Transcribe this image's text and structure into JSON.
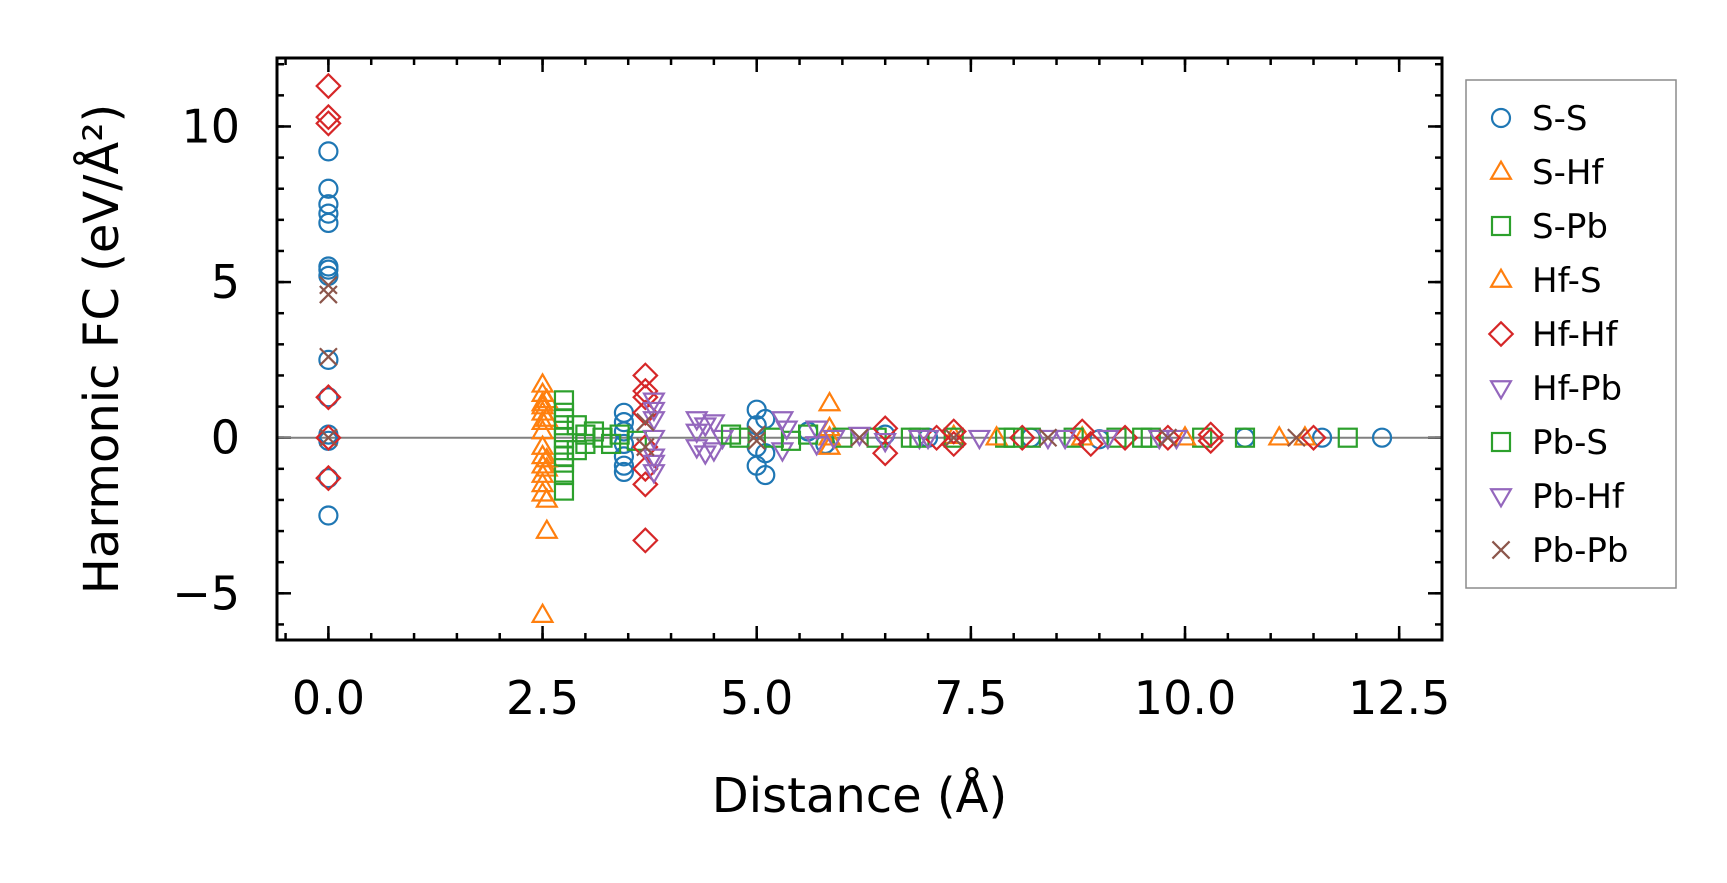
{
  "chart_data": {
    "type": "scatter",
    "title": "",
    "xlabel": "Distance (Å)",
    "ylabel": "Harmonic FC (eV/Å²)",
    "xlim": [
      -0.6,
      13.0
    ],
    "ylim": [
      -6.5,
      12.2
    ],
    "xticks": [
      0.0,
      2.5,
      5.0,
      7.5,
      10.0,
      12.5
    ],
    "xtick_labels": [
      "0.0",
      "2.5",
      "5.0",
      "7.5",
      "10.0",
      "12.5"
    ],
    "yticks": [
      -5,
      0,
      5,
      10
    ],
    "ytick_labels": [
      "−5",
      "0",
      "5",
      "10"
    ],
    "x_minor_step": 0.5,
    "y_minor_step": 1,
    "reference_line_y": 0,
    "legend_position": "outside-right",
    "series": [
      {
        "name": "S-S",
        "marker": "circle",
        "color": "#1f77b4",
        "points": [
          [
            0,
            9.2
          ],
          [
            0,
            8.0
          ],
          [
            0,
            7.5
          ],
          [
            0,
            7.2
          ],
          [
            0,
            6.9
          ],
          [
            0,
            5.5
          ],
          [
            0,
            5.4
          ],
          [
            0,
            5.2
          ],
          [
            0,
            2.5
          ],
          [
            0,
            1.3
          ],
          [
            0,
            0.1
          ],
          [
            0,
            -0.1
          ],
          [
            0,
            -1.3
          ],
          [
            0,
            -2.5
          ],
          [
            3.45,
            0.8
          ],
          [
            3.45,
            0.5
          ],
          [
            3.45,
            0.2
          ],
          [
            3.45,
            -0.2
          ],
          [
            3.45,
            -0.6
          ],
          [
            3.45,
            -0.9
          ],
          [
            3.45,
            -1.1
          ],
          [
            5.0,
            0.9
          ],
          [
            5.0,
            0.4
          ],
          [
            5.0,
            -0.3
          ],
          [
            5.0,
            -0.9
          ],
          [
            5.1,
            0.6
          ],
          [
            5.1,
            -1.2
          ],
          [
            5.1,
            -0.5
          ],
          [
            5.6,
            0.2
          ],
          [
            5.8,
            -0.2
          ],
          [
            6.5,
            0.1
          ],
          [
            7.0,
            0.0
          ],
          [
            8.2,
            0.0
          ],
          [
            9.0,
            -0.05
          ],
          [
            10.7,
            0.0
          ],
          [
            11.6,
            0.0
          ],
          [
            12.3,
            0.0
          ]
        ]
      },
      {
        "name": "S-Hf",
        "marker": "triangle-up",
        "color": "#ff7f0e",
        "points": [
          [
            2.5,
            1.7
          ],
          [
            2.5,
            1.4
          ],
          [
            2.5,
            1.1
          ],
          [
            2.5,
            0.8
          ],
          [
            2.5,
            0.5
          ],
          [
            2.5,
            -0.6
          ],
          [
            2.5,
            -0.9
          ],
          [
            2.5,
            -1.2
          ],
          [
            2.5,
            -1.5
          ],
          [
            2.5,
            -1.8
          ],
          [
            2.5,
            -5.7
          ],
          [
            2.55,
            1.2
          ],
          [
            2.55,
            -1.0
          ],
          [
            2.55,
            -3.0
          ],
          [
            5.85,
            1.1
          ],
          [
            5.85,
            0.3
          ],
          [
            5.85,
            -0.3
          ],
          [
            7.3,
            0.05
          ],
          [
            8.8,
            0.0
          ],
          [
            11.1,
            0.0
          ]
        ]
      },
      {
        "name": "S-Pb",
        "marker": "square",
        "color": "#2ca02c",
        "points": [
          [
            2.75,
            1.2
          ],
          [
            2.75,
            0.8
          ],
          [
            2.75,
            0.4
          ],
          [
            2.75,
            -0.4
          ],
          [
            2.75,
            -0.8
          ],
          [
            2.75,
            -1.2
          ],
          [
            2.75,
            -1.7
          ],
          [
            2.9,
            0.4
          ],
          [
            2.9,
            -0.4
          ],
          [
            3.0,
            0.1
          ],
          [
            3.0,
            -0.2
          ],
          [
            3.2,
            0.0
          ],
          [
            3.4,
            0.1
          ],
          [
            3.6,
            -0.1
          ],
          [
            4.8,
            0.0
          ],
          [
            5.2,
            0.0
          ],
          [
            5.6,
            0.1
          ],
          [
            6.0,
            0.0
          ],
          [
            6.4,
            0.0
          ],
          [
            6.9,
            0.0
          ],
          [
            7.3,
            0.0
          ],
          [
            7.9,
            0.0
          ],
          [
            8.2,
            0.0
          ],
          [
            8.7,
            0.0
          ],
          [
            9.2,
            0.0
          ],
          [
            9.6,
            0.0
          ],
          [
            10.2,
            0.0
          ],
          [
            10.7,
            0.0
          ],
          [
            11.9,
            0.0
          ]
        ]
      },
      {
        "name": "Hf-S",
        "marker": "triangle-up",
        "color": "#ff7f0e",
        "points": [
          [
            2.5,
            1.0
          ],
          [
            2.5,
            0.2
          ],
          [
            2.5,
            -0.3
          ],
          [
            2.55,
            0.6
          ],
          [
            2.55,
            -0.7
          ],
          [
            2.55,
            -2.0
          ],
          [
            5.85,
            0.0
          ],
          [
            7.8,
            0.0
          ],
          [
            10.0,
            0.0
          ],
          [
            11.4,
            0.0
          ]
        ]
      },
      {
        "name": "Hf-Hf",
        "marker": "diamond",
        "color": "#d62728",
        "points": [
          [
            0,
            11.3
          ],
          [
            0,
            10.3
          ],
          [
            0,
            10.1
          ],
          [
            0,
            1.3
          ],
          [
            0,
            0.0
          ],
          [
            0,
            -1.3
          ],
          [
            3.7,
            2.0
          ],
          [
            3.7,
            1.5
          ],
          [
            3.7,
            1.3
          ],
          [
            3.7,
            0.8
          ],
          [
            3.7,
            -0.3
          ],
          [
            3.7,
            -1.0
          ],
          [
            3.7,
            -1.5
          ],
          [
            3.7,
            -3.3
          ],
          [
            6.5,
            0.3
          ],
          [
            6.5,
            -0.5
          ],
          [
            7.1,
            0.0
          ],
          [
            7.3,
            0.2
          ],
          [
            7.3,
            -0.2
          ],
          [
            8.1,
            0.0
          ],
          [
            8.8,
            0.2
          ],
          [
            8.9,
            -0.2
          ],
          [
            9.3,
            0.0
          ],
          [
            9.8,
            0.0
          ],
          [
            10.3,
            0.1
          ],
          [
            10.3,
            -0.1
          ],
          [
            11.5,
            0.0
          ]
        ]
      },
      {
        "name": "Hf-Pb",
        "marker": "triangle-down",
        "color": "#9467bd",
        "points": [
          [
            3.8,
            1.2
          ],
          [
            3.8,
            0.6
          ],
          [
            3.8,
            0.0
          ],
          [
            3.8,
            -0.6
          ],
          [
            3.8,
            -1.1
          ],
          [
            4.3,
            0.6
          ],
          [
            4.3,
            0.2
          ],
          [
            4.3,
            -0.3
          ],
          [
            4.5,
            0.5
          ],
          [
            4.5,
            -0.4
          ],
          [
            4.6,
            0.0
          ],
          [
            5.3,
            0.6
          ],
          [
            5.3,
            -0.4
          ],
          [
            5.7,
            0.3
          ],
          [
            5.7,
            -0.2
          ],
          [
            6.2,
            0.1
          ],
          [
            6.5,
            -0.1
          ],
          [
            6.9,
            0.0
          ],
          [
            7.6,
            0.0
          ],
          [
            8.4,
            0.0
          ],
          [
            9.1,
            0.0
          ],
          [
            9.9,
            0.0
          ]
        ]
      },
      {
        "name": "Pb-S",
        "marker": "square",
        "color": "#2ca02c",
        "points": [
          [
            2.75,
            0.6
          ],
          [
            2.75,
            0.0
          ],
          [
            2.75,
            -0.6
          ],
          [
            3.1,
            0.2
          ],
          [
            3.3,
            -0.2
          ],
          [
            4.7,
            0.1
          ],
          [
            5.4,
            -0.1
          ],
          [
            6.8,
            0.0
          ],
          [
            8.0,
            0.0
          ],
          [
            9.5,
            0.0
          ]
        ]
      },
      {
        "name": "Pb-Hf",
        "marker": "triangle-down",
        "color": "#9467bd",
        "points": [
          [
            3.8,
            0.9
          ],
          [
            3.8,
            -0.8
          ],
          [
            4.4,
            0.4
          ],
          [
            4.4,
            -0.5
          ],
          [
            5.35,
            0.3
          ],
          [
            5.9,
            0.0
          ],
          [
            7.0,
            0.0
          ],
          [
            8.6,
            0.0
          ],
          [
            9.7,
            0.0
          ]
        ]
      },
      {
        "name": "Pb-Pb",
        "marker": "x",
        "color": "#8c564b",
        "points": [
          [
            0,
            4.6
          ],
          [
            0,
            4.9
          ],
          [
            0,
            2.6
          ],
          [
            0,
            0.0
          ],
          [
            3.7,
            0.5
          ],
          [
            3.7,
            -0.3
          ],
          [
            5.0,
            0.1
          ],
          [
            5.0,
            -0.1
          ],
          [
            6.2,
            0.0
          ],
          [
            7.3,
            0.0
          ],
          [
            8.4,
            0.0
          ],
          [
            9.8,
            0.0
          ],
          [
            11.3,
            0.0
          ]
        ]
      }
    ]
  }
}
